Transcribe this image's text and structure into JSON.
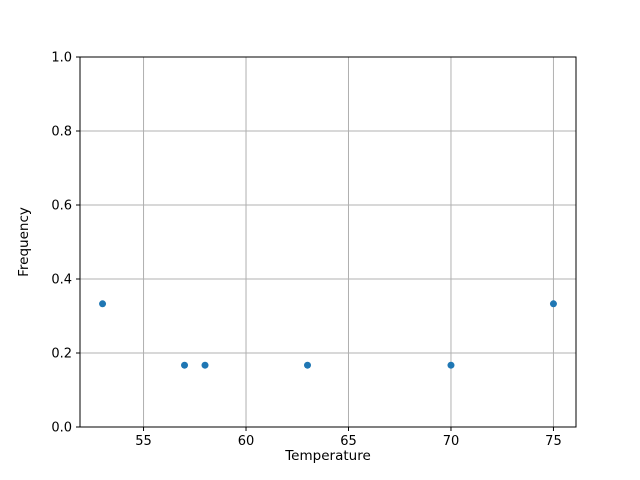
{
  "chart_data": {
    "type": "scatter",
    "title": "",
    "xlabel": "Temperature",
    "ylabel": "Frequency",
    "x": [
      53,
      57,
      58,
      63,
      70,
      75
    ],
    "y": [
      0.333,
      0.167,
      0.167,
      0.167,
      0.167,
      0.333
    ],
    "xlim": [
      51.9,
      76.1
    ],
    "ylim": [
      0.0,
      1.0
    ],
    "xticks": [
      55,
      60,
      65,
      70,
      75
    ],
    "xtick_labels": [
      "55",
      "60",
      "65",
      "70",
      "75"
    ],
    "yticks": [
      0.0,
      0.2,
      0.4,
      0.6,
      0.8,
      1.0
    ],
    "ytick_labels": [
      "0.0",
      "0.2",
      "0.4",
      "0.6",
      "0.8",
      "1.0"
    ],
    "grid": true,
    "legend": "none",
    "marker_color": "#1f77b4",
    "grid_color": "#b0b0b0",
    "axis_color": "#000000",
    "background_color": "#ffffff"
  }
}
